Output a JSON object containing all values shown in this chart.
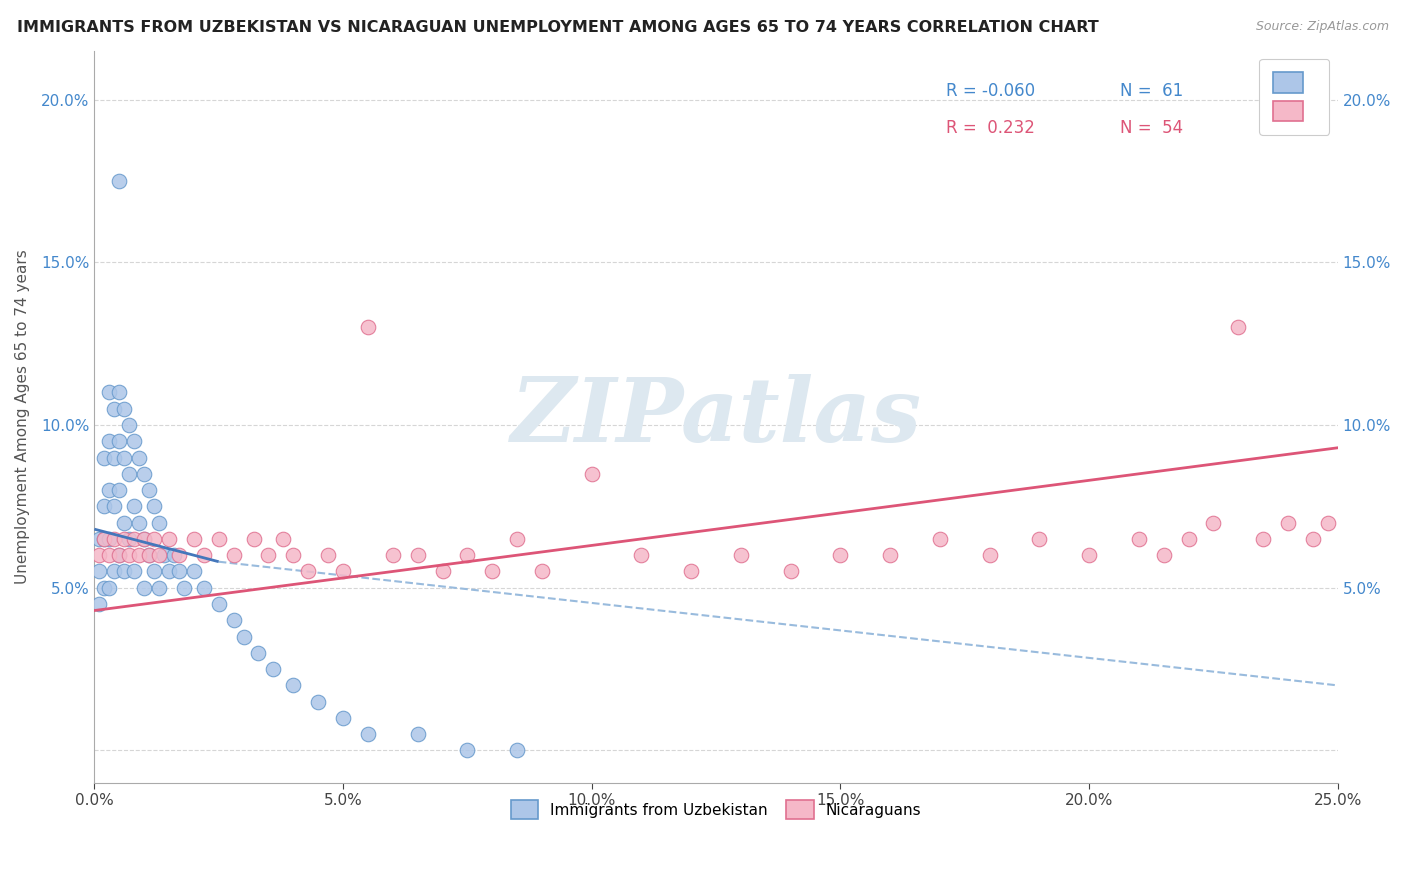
{
  "title": "IMMIGRANTS FROM UZBEKISTAN VS NICARAGUAN UNEMPLOYMENT AMONG AGES 65 TO 74 YEARS CORRELATION CHART",
  "source": "Source: ZipAtlas.com",
  "ylabel": "Unemployment Among Ages 65 to 74 years",
  "xlim": [
    0.0,
    0.25
  ],
  "ylim": [
    -0.01,
    0.215
  ],
  "xticks": [
    0.0,
    0.05,
    0.1,
    0.15,
    0.2,
    0.25
  ],
  "yticks": [
    0.0,
    0.05,
    0.1,
    0.15,
    0.2
  ],
  "xtick_labels": [
    "0.0%",
    "5.0%",
    "10.0%",
    "15.0%",
    "20.0%",
    "25.0%"
  ],
  "ytick_labels": [
    "",
    "5.0%",
    "10.0%",
    "15.0%",
    "20.0%"
  ],
  "series1_color": "#adc6e8",
  "series1_edge_color": "#6699cc",
  "series1_label": "Immigrants from Uzbekistan",
  "series1_R": -0.06,
  "series1_N": 61,
  "series2_color": "#f5b8c8",
  "series2_edge_color": "#e07090",
  "series2_label": "Nicaraguans",
  "series2_R": 0.232,
  "series2_N": 54,
  "line1_color": "#4477bb",
  "line2_color": "#dd5577",
  "dashed_line_color": "#99bbdd",
  "background_color": "#ffffff",
  "watermark_text": "ZIPatlas",
  "watermark_color": "#dde8f0",
  "blue_x": [
    0.001,
    0.001,
    0.001,
    0.002,
    0.002,
    0.002,
    0.002,
    0.003,
    0.003,
    0.003,
    0.003,
    0.003,
    0.004,
    0.004,
    0.004,
    0.004,
    0.005,
    0.005,
    0.005,
    0.005,
    0.005,
    0.006,
    0.006,
    0.006,
    0.006,
    0.007,
    0.007,
    0.007,
    0.008,
    0.008,
    0.008,
    0.009,
    0.009,
    0.01,
    0.01,
    0.01,
    0.011,
    0.011,
    0.012,
    0.012,
    0.013,
    0.013,
    0.014,
    0.015,
    0.016,
    0.017,
    0.018,
    0.02,
    0.022,
    0.025,
    0.028,
    0.03,
    0.033,
    0.036,
    0.04,
    0.045,
    0.05,
    0.055,
    0.065,
    0.075,
    0.085
  ],
  "blue_y": [
    0.065,
    0.055,
    0.045,
    0.09,
    0.075,
    0.065,
    0.05,
    0.11,
    0.095,
    0.08,
    0.065,
    0.05,
    0.105,
    0.09,
    0.075,
    0.055,
    0.175,
    0.11,
    0.095,
    0.08,
    0.06,
    0.105,
    0.09,
    0.07,
    0.055,
    0.1,
    0.085,
    0.065,
    0.095,
    0.075,
    0.055,
    0.09,
    0.07,
    0.085,
    0.065,
    0.05,
    0.08,
    0.06,
    0.075,
    0.055,
    0.07,
    0.05,
    0.06,
    0.055,
    0.06,
    0.055,
    0.05,
    0.055,
    0.05,
    0.045,
    0.04,
    0.035,
    0.03,
    0.025,
    0.02,
    0.015,
    0.01,
    0.005,
    0.005,
    0.0,
    0.0
  ],
  "pink_x": [
    0.001,
    0.002,
    0.003,
    0.004,
    0.005,
    0.006,
    0.007,
    0.008,
    0.009,
    0.01,
    0.011,
    0.012,
    0.013,
    0.015,
    0.017,
    0.02,
    0.022,
    0.025,
    0.028,
    0.032,
    0.035,
    0.038,
    0.04,
    0.043,
    0.047,
    0.05,
    0.055,
    0.06,
    0.065,
    0.07,
    0.075,
    0.08,
    0.085,
    0.09,
    0.1,
    0.11,
    0.12,
    0.13,
    0.14,
    0.15,
    0.16,
    0.17,
    0.18,
    0.19,
    0.2,
    0.21,
    0.215,
    0.22,
    0.225,
    0.23,
    0.235,
    0.24,
    0.245,
    0.248
  ],
  "pink_y": [
    0.06,
    0.065,
    0.06,
    0.065,
    0.06,
    0.065,
    0.06,
    0.065,
    0.06,
    0.065,
    0.06,
    0.065,
    0.06,
    0.065,
    0.06,
    0.065,
    0.06,
    0.065,
    0.06,
    0.065,
    0.06,
    0.065,
    0.06,
    0.055,
    0.06,
    0.055,
    0.13,
    0.06,
    0.06,
    0.055,
    0.06,
    0.055,
    0.065,
    0.055,
    0.085,
    0.06,
    0.055,
    0.06,
    0.055,
    0.06,
    0.06,
    0.065,
    0.06,
    0.065,
    0.06,
    0.065,
    0.06,
    0.065,
    0.07,
    0.13,
    0.065,
    0.07,
    0.065,
    0.07
  ],
  "blue_line_x": [
    0.0,
    0.025
  ],
  "blue_line_y": [
    0.068,
    0.058
  ],
  "dashed_line_x": [
    0.025,
    0.25
  ],
  "dashed_line_y": [
    0.058,
    0.02
  ],
  "pink_line_x": [
    0.0,
    0.25
  ],
  "pink_line_y": [
    0.043,
    0.093
  ]
}
